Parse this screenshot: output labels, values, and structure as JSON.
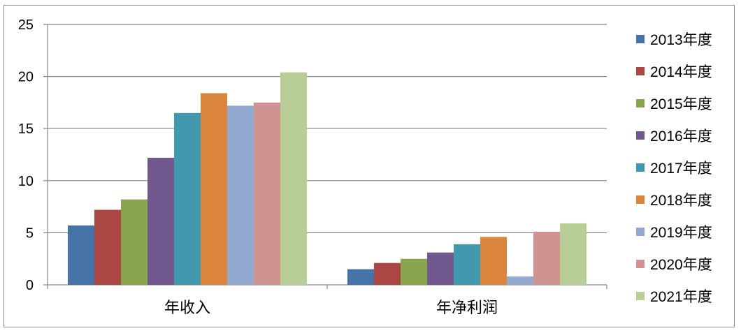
{
  "chart_data": {
    "type": "bar",
    "categories": [
      "年收入",
      "年净利润"
    ],
    "series": [
      {
        "name": "2013年度",
        "color": "#4572A7",
        "values": [
          5.7,
          1.5
        ]
      },
      {
        "name": "2014年度",
        "color": "#AA4643",
        "values": [
          7.2,
          2.1
        ]
      },
      {
        "name": "2015年度",
        "color": "#89A54E",
        "values": [
          8.2,
          2.5
        ]
      },
      {
        "name": "2016年度",
        "color": "#71588F",
        "values": [
          12.2,
          3.1
        ]
      },
      {
        "name": "2017年度",
        "color": "#4198AF",
        "values": [
          16.5,
          3.9
        ]
      },
      {
        "name": "2018年度",
        "color": "#DB843D",
        "values": [
          18.4,
          4.6
        ]
      },
      {
        "name": "2019年度",
        "color": "#93A9CF",
        "values": [
          17.2,
          0.8
        ]
      },
      {
        "name": "2020年度",
        "color": "#D19392",
        "values": [
          17.5,
          5.1
        ]
      },
      {
        "name": "2021年度",
        "color": "#B9CD96",
        "values": [
          20.4,
          5.9
        ]
      }
    ],
    "ylim": [
      0,
      25
    ],
    "yticks": [
      0,
      5,
      10,
      15,
      20,
      25
    ],
    "grid": true,
    "legend": "right"
  }
}
